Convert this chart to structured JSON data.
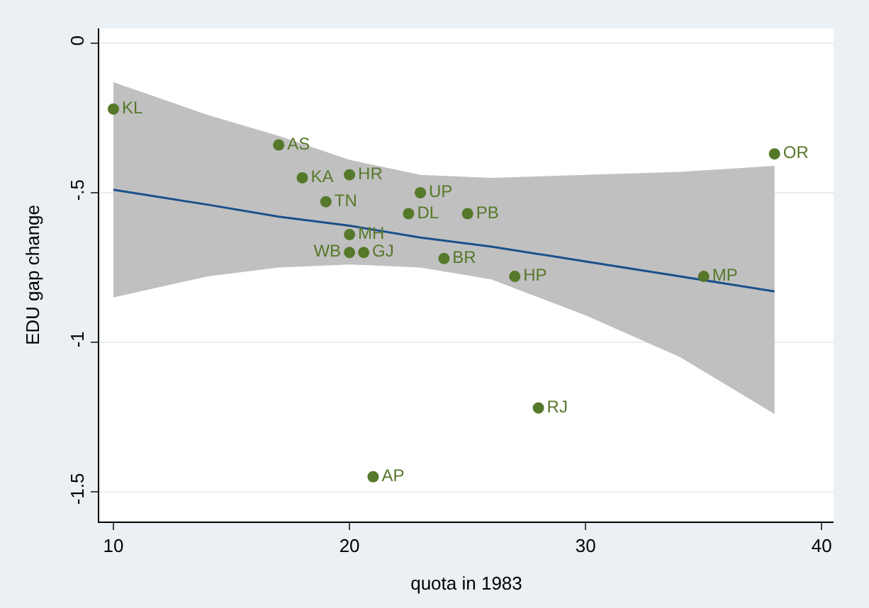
{
  "chart_data": {
    "type": "scatter",
    "xlabel": "quota in 1983",
    "ylabel": "EDU gap change",
    "xlim": [
      9.4,
      40.5
    ],
    "ylim": [
      -1.6,
      0.05
    ],
    "xticks": [
      10,
      20,
      30,
      40
    ],
    "yticks": [
      {
        "value": 0,
        "label": "0"
      },
      {
        "value": -0.5,
        "label": "-.5"
      },
      {
        "value": -1,
        "label": "-1"
      },
      {
        "value": -1.5,
        "label": "-1.5"
      }
    ],
    "grid": "y",
    "marker": "circle",
    "series": [
      {
        "type": "line",
        "color": "#1b4f8a",
        "marker": "none",
        "x": [
          10,
          14,
          17,
          20,
          23,
          26,
          30,
          34,
          38
        ],
        "values": [
          -0.49,
          -0.54,
          -0.58,
          -0.61,
          -0.65,
          -0.68,
          -0.73,
          -0.78,
          -0.83
        ],
        "upper": [
          -0.13,
          -0.24,
          -0.31,
          -0.39,
          -0.44,
          -0.45,
          -0.44,
          -0.43,
          -0.41
        ],
        "lower": [
          -0.85,
          -0.78,
          -0.75,
          -0.74,
          -0.75,
          -0.79,
          -0.91,
          -1.05,
          -1.24
        ]
      },
      {
        "color": "#56782a",
        "x": [
          10,
          17,
          18,
          20,
          19,
          23,
          22.5,
          25,
          20,
          20,
          20.6,
          24,
          27,
          35,
          38,
          28,
          21
        ],
        "values": [
          -0.22,
          -0.34,
          -0.45,
          -0.44,
          -0.53,
          -0.5,
          -0.57,
          -0.57,
          -0.64,
          -0.7,
          -0.7,
          -0.72,
          -0.78,
          -0.78,
          -0.37,
          -1.22,
          -1.45
        ],
        "value_labels": [
          "KL",
          "AS",
          "KA",
          "HR",
          "TN",
          "UP",
          "DL",
          "PB",
          "MH",
          "WB",
          "GJ",
          "BR",
          "HP",
          "MP",
          "OR",
          "RJ",
          "AP"
        ]
      }
    ]
  }
}
